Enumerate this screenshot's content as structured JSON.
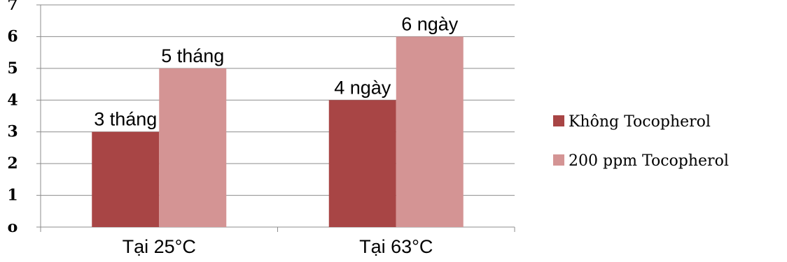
{
  "chart_data": {
    "type": "bar",
    "categories": [
      "Tại 25°C",
      "Tại 63°C"
    ],
    "series": [
      {
        "name": "Không Tocopherol",
        "values": [
          3,
          4
        ],
        "labels": [
          "3 tháng",
          "4 ngày"
        ],
        "color": "#a84545"
      },
      {
        "name": "200 ppm Tocopherol",
        "values": [
          5,
          6
        ],
        "labels": [
          "5 tháng",
          "6 ngày"
        ],
        "color": "#d49494"
      }
    ],
    "yticks": [
      "o",
      "1",
      "2",
      "3",
      "4",
      "5",
      "6",
      "7"
    ],
    "ylim": [
      0,
      7
    ],
    "grid": true,
    "legend_position": "right",
    "title": "",
    "xlabel": "",
    "ylabel": ""
  }
}
